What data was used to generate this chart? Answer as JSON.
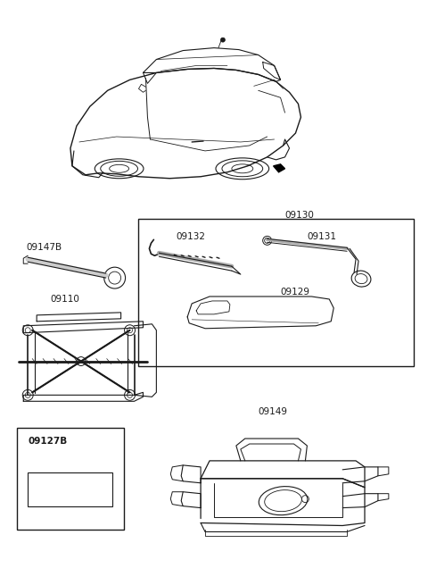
{
  "background_color": "#ffffff",
  "line_color": "#1a1a1a",
  "text_color": "#1a1a1a",
  "font_size": 7.5,
  "fig_width": 4.8,
  "fig_height": 6.55,
  "dpi": 100
}
